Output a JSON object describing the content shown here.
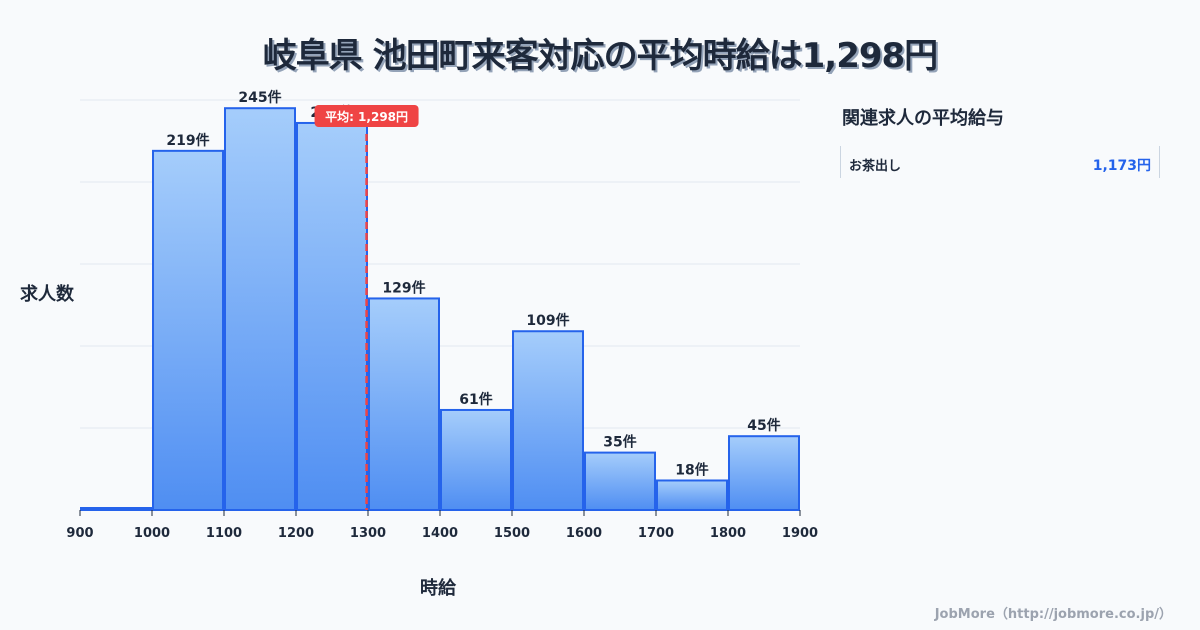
{
  "title": "岐阜県 池田町来客対応の平均時給は1,298円",
  "chart_data": {
    "type": "bar",
    "title": "岐阜県 池田町来客対応の平均時給は1,298円",
    "xlabel": "時給",
    "ylabel": "求人数",
    "categories": [
      "900-1000",
      "1000-1100",
      "1100-1200",
      "1200-1300",
      "1300-1400",
      "1400-1500",
      "1500-1600",
      "1600-1700",
      "1700-1800",
      "1800-1900"
    ],
    "bin_edges": [
      900,
      1000,
      1100,
      1200,
      1300,
      1400,
      1500,
      1600,
      1700,
      1800,
      1900
    ],
    "values": [
      1,
      219,
      245,
      236,
      129,
      61,
      109,
      35,
      18,
      45
    ],
    "value_labels": [
      "",
      "219件",
      "245件",
      "236件",
      "129件",
      "61件",
      "109件",
      "35件",
      "18件",
      "45件"
    ],
    "x_ticks": [
      "900",
      "1000",
      "1100",
      "1200",
      "1300",
      "1400",
      "1500",
      "1600",
      "1700",
      "1800",
      "1900"
    ],
    "ylim": [
      0,
      250
    ],
    "grid": true,
    "mean_line": {
      "value": 1298,
      "label": "平均: 1,298円",
      "color": "#ef4444"
    },
    "bar_color_top": "#a5cdfb",
    "bar_color_bottom": "#4f8ef2",
    "bar_border": "#2563eb"
  },
  "sidebar": {
    "title": "関連求人の平均給与",
    "items": [
      {
        "label": "お茶出し",
        "value": "1,173円"
      }
    ]
  },
  "footer": "JobMore（http://jobmore.co.jp/）"
}
